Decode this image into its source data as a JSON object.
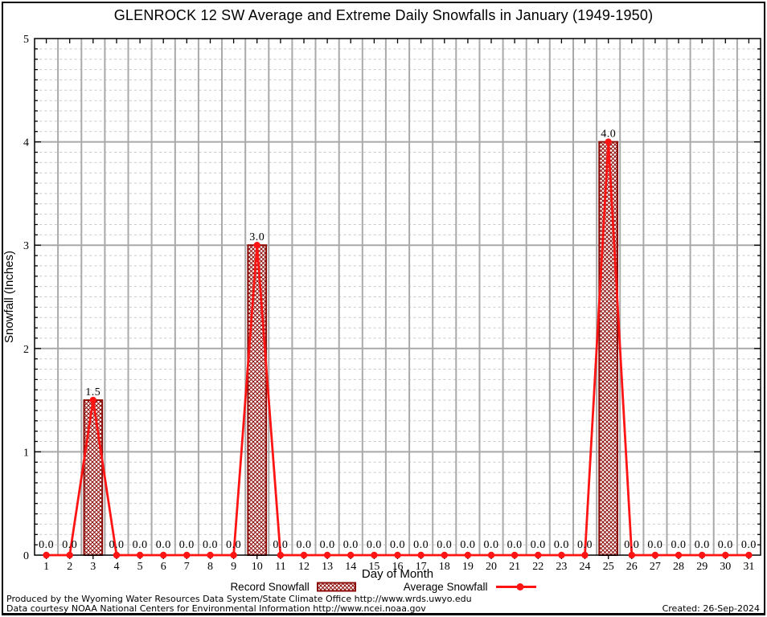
{
  "title": "GLENROCK 12 SW Average and Extreme Daily Snowfalls in January (1949-1950)",
  "chart_data": {
    "type": "bar",
    "title": "GLENROCK 12 SW Average and Extreme Daily Snowfalls in January (1949-1950)",
    "xlabel": "Day of Month",
    "ylabel": "Snowfall (Inches)",
    "x": [
      1,
      2,
      3,
      4,
      5,
      6,
      7,
      8,
      9,
      10,
      11,
      12,
      13,
      14,
      15,
      16,
      17,
      18,
      19,
      20,
      21,
      22,
      23,
      24,
      25,
      26,
      27,
      28,
      29,
      30,
      31
    ],
    "series": [
      {
        "name": "Record Snowfall",
        "type": "bar",
        "values": [
          0,
          0,
          1.5,
          0,
          0,
          0,
          0,
          0,
          0,
          3.0,
          0,
          0,
          0,
          0,
          0,
          0,
          0,
          0,
          0,
          0,
          0,
          0,
          0,
          0,
          4.0,
          0,
          0,
          0,
          0,
          0,
          0
        ]
      },
      {
        "name": "Average Snowfall",
        "type": "line",
        "values": [
          0,
          0,
          1.5,
          0,
          0,
          0,
          0,
          0,
          0,
          3.0,
          0,
          0,
          0,
          0,
          0,
          0,
          0,
          0,
          0,
          0,
          0,
          0,
          0,
          0,
          4.0,
          0,
          0,
          0,
          0,
          0,
          0
        ]
      }
    ],
    "point_labels": [
      "0.0",
      "0.0",
      "1.5",
      "0.0",
      "0.0",
      "0.0",
      "0.0",
      "0.0",
      "0.0",
      "3.0",
      "0.0",
      "0.0",
      "0.0",
      "0.0",
      "0.0",
      "0.0",
      "0.0",
      "0.0",
      "0.0",
      "0.0",
      "0.0",
      "0.0",
      "0.0",
      "0.0",
      "4.0",
      "0.0",
      "0.0",
      "0.0",
      "0.0",
      "0.0",
      "0.0"
    ],
    "ylim": [
      0,
      5
    ],
    "ytick_major": 1,
    "ytick_minor": 0.1,
    "grid": {
      "major": true,
      "minor": true
    },
    "legend_position": "bottom",
    "colors": {
      "bar_edge": "#8b0a06",
      "bar_hatch": "#8b0a06",
      "line": "#ff1414",
      "marker": "#ff1414",
      "grid_major": "#a9a9a9",
      "grid_minor": "#c9c9c9",
      "axis": "#000000",
      "label_text": "#000000"
    }
  },
  "footer": {
    "line1": "Produced by the Wyoming Water Resources Data System/State Climate Office http://www.wrds.uwyo.edu",
    "line2": "Data courtesy NOAA National Centers for Environmental Information http://www.ncei.noaa.gov",
    "created": "Created: 26-Sep-2024"
  }
}
